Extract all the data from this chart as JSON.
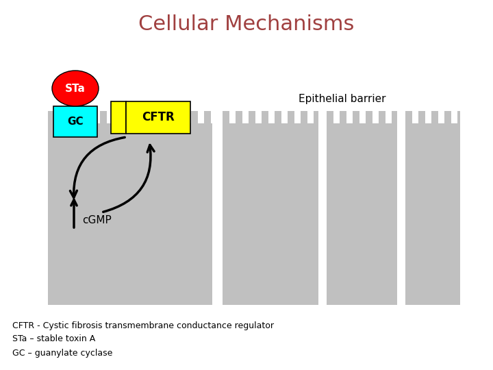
{
  "title": "Cellular Mechanisms",
  "title_color": "#A04040",
  "title_fontsize": 22,
  "bg_color": "#FFFFFF",
  "cell_color": "#C0C0C0",
  "gc_color": "#00FFFF",
  "sta_color": "#FF0000",
  "cftr_color": "#FFFF00",
  "text_color": "#000000",
  "epithelial_label": "Epithelial barrier",
  "cgmp_label": "cGMP",
  "gc_label": "GC",
  "sta_label": "STa",
  "cftr_label": "CFTR",
  "footnote1": "CFTR - Cystic fibrosis transmembrane conductance regulator",
  "footnote2": "STa – stable toxin A",
  "footnote3": "GC – guanylate cyclase"
}
